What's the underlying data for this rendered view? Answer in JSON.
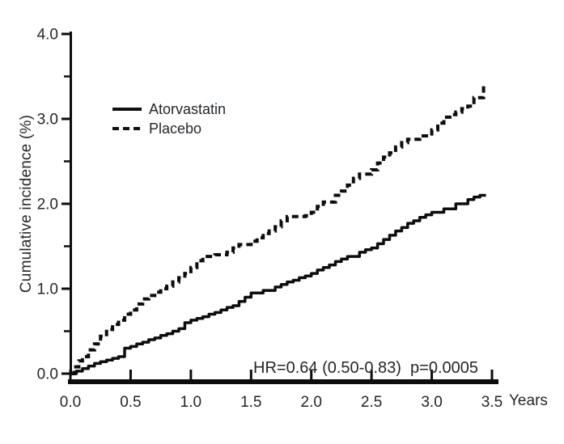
{
  "chart_data": {
    "type": "line",
    "subtype": "cumulative-incidence-step-curves",
    "title": "",
    "ylabel": "Cumulative incidence (%)",
    "xlabel": "Years",
    "xlim": [
      0,
      3.5
    ],
    "ylim": [
      0.0,
      4.0
    ],
    "grid": false,
    "x_ticks": [
      "0.0",
      "0.5",
      "1.0",
      "1.5",
      "2.0",
      "2.5",
      "3.0",
      "3.5"
    ],
    "y_ticks": [
      "0.0",
      "1.0",
      "2.0",
      "3.0",
      "4.0"
    ],
    "y_minor_ticks": [
      0.5,
      1.5,
      2.5,
      3.5
    ],
    "legend_position": "upper-left-inside",
    "annotation": "HR=0.64 (0.50-0.83)  p=0.0005",
    "line_color": "#0d0d0d",
    "series": [
      {
        "name": "Atorvastatin",
        "line": "solid",
        "color": "#0d0d0d",
        "points": [
          [
            0.0,
            0.0
          ],
          [
            0.05,
            0.03
          ],
          [
            0.1,
            0.06
          ],
          [
            0.15,
            0.09
          ],
          [
            0.2,
            0.12
          ],
          [
            0.25,
            0.14
          ],
          [
            0.3,
            0.16
          ],
          [
            0.35,
            0.18
          ],
          [
            0.4,
            0.2
          ],
          [
            0.45,
            0.3
          ],
          [
            0.5,
            0.32
          ],
          [
            0.55,
            0.35
          ],
          [
            0.6,
            0.37
          ],
          [
            0.65,
            0.4
          ],
          [
            0.7,
            0.42
          ],
          [
            0.75,
            0.45
          ],
          [
            0.8,
            0.47
          ],
          [
            0.85,
            0.5
          ],
          [
            0.9,
            0.53
          ],
          [
            0.95,
            0.6
          ],
          [
            1.0,
            0.63
          ],
          [
            1.05,
            0.65
          ],
          [
            1.1,
            0.67
          ],
          [
            1.15,
            0.7
          ],
          [
            1.2,
            0.72
          ],
          [
            1.25,
            0.75
          ],
          [
            1.3,
            0.78
          ],
          [
            1.35,
            0.8
          ],
          [
            1.4,
            0.85
          ],
          [
            1.45,
            0.9
          ],
          [
            1.5,
            0.95
          ],
          [
            1.6,
            0.98
          ],
          [
            1.7,
            1.02
          ],
          [
            1.75,
            1.05
          ],
          [
            1.8,
            1.08
          ],
          [
            1.85,
            1.1
          ],
          [
            1.9,
            1.13
          ],
          [
            1.95,
            1.15
          ],
          [
            2.0,
            1.18
          ],
          [
            2.05,
            1.22
          ],
          [
            2.1,
            1.25
          ],
          [
            2.15,
            1.28
          ],
          [
            2.2,
            1.32
          ],
          [
            2.25,
            1.35
          ],
          [
            2.3,
            1.38
          ],
          [
            2.4,
            1.43
          ],
          [
            2.45,
            1.46
          ],
          [
            2.5,
            1.48
          ],
          [
            2.55,
            1.53
          ],
          [
            2.6,
            1.58
          ],
          [
            2.65,
            1.63
          ],
          [
            2.7,
            1.68
          ],
          [
            2.75,
            1.72
          ],
          [
            2.8,
            1.77
          ],
          [
            2.85,
            1.8
          ],
          [
            2.9,
            1.84
          ],
          [
            2.95,
            1.87
          ],
          [
            3.0,
            1.9
          ],
          [
            3.1,
            1.94
          ],
          [
            3.2,
            2.0
          ],
          [
            3.3,
            2.05
          ],
          [
            3.35,
            2.08
          ],
          [
            3.4,
            2.1
          ],
          [
            3.45,
            2.1
          ]
        ]
      },
      {
        "name": "Placebo",
        "line": "dashed",
        "color": "#0d0d0d",
        "points": [
          [
            0.0,
            0.0
          ],
          [
            0.03,
            0.08
          ],
          [
            0.07,
            0.15
          ],
          [
            0.1,
            0.2
          ],
          [
            0.15,
            0.28
          ],
          [
            0.2,
            0.35
          ],
          [
            0.25,
            0.44
          ],
          [
            0.3,
            0.52
          ],
          [
            0.35,
            0.58
          ],
          [
            0.4,
            0.63
          ],
          [
            0.45,
            0.7
          ],
          [
            0.5,
            0.75
          ],
          [
            0.55,
            0.82
          ],
          [
            0.6,
            0.88
          ],
          [
            0.65,
            0.92
          ],
          [
            0.7,
            0.96
          ],
          [
            0.75,
            1.0
          ],
          [
            0.8,
            1.03
          ],
          [
            0.85,
            1.08
          ],
          [
            0.9,
            1.13
          ],
          [
            0.95,
            1.18
          ],
          [
            1.0,
            1.25
          ],
          [
            1.05,
            1.33
          ],
          [
            1.1,
            1.38
          ],
          [
            1.2,
            1.4
          ],
          [
            1.3,
            1.43
          ],
          [
            1.35,
            1.48
          ],
          [
            1.4,
            1.52
          ],
          [
            1.5,
            1.56
          ],
          [
            1.55,
            1.6
          ],
          [
            1.6,
            1.65
          ],
          [
            1.65,
            1.68
          ],
          [
            1.7,
            1.73
          ],
          [
            1.75,
            1.8
          ],
          [
            1.8,
            1.85
          ],
          [
            1.95,
            1.86
          ],
          [
            2.0,
            1.9
          ],
          [
            2.05,
            1.97
          ],
          [
            2.1,
            2.02
          ],
          [
            2.2,
            2.1
          ],
          [
            2.25,
            2.15
          ],
          [
            2.3,
            2.22
          ],
          [
            2.35,
            2.3
          ],
          [
            2.4,
            2.35
          ],
          [
            2.5,
            2.4
          ],
          [
            2.55,
            2.48
          ],
          [
            2.6,
            2.55
          ],
          [
            2.65,
            2.6
          ],
          [
            2.7,
            2.67
          ],
          [
            2.75,
            2.72
          ],
          [
            2.8,
            2.76
          ],
          [
            2.9,
            2.8
          ],
          [
            3.0,
            2.87
          ],
          [
            3.05,
            2.95
          ],
          [
            3.1,
            3.02
          ],
          [
            3.15,
            3.05
          ],
          [
            3.2,
            3.08
          ],
          [
            3.25,
            3.12
          ],
          [
            3.3,
            3.15
          ],
          [
            3.35,
            3.25
          ],
          [
            3.43,
            3.4
          ]
        ]
      }
    ]
  }
}
